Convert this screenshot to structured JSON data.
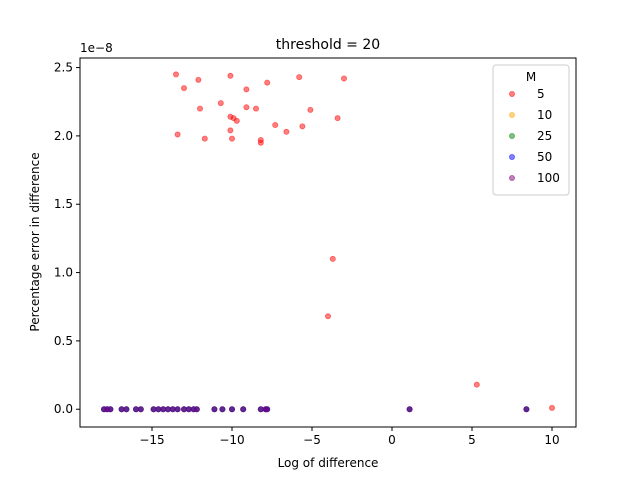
{
  "chart_data": {
    "type": "scatter",
    "title": "threshold = 20",
    "xlabel": "Log of difference",
    "ylabel": "Percentage error in difference",
    "y_multiplier_label": "1e−8",
    "xlim": [
      -19.5,
      11.5
    ],
    "ylim": [
      -0.13,
      2.57
    ],
    "x_ticks": [
      -15,
      -10,
      -5,
      0,
      5,
      10
    ],
    "x_tick_labels": [
      "−15",
      "−10",
      "−5",
      "0",
      "5",
      "10"
    ],
    "y_ticks": [
      0.0,
      0.5,
      1.0,
      1.5,
      2.0,
      2.5
    ],
    "y_tick_labels": [
      "0.0",
      "0.5",
      "1.0",
      "1.5",
      "2.0",
      "2.5"
    ],
    "grid": false,
    "legend": {
      "title": "M",
      "placement": "top-right"
    },
    "series": [
      {
        "name": "5",
        "color": "#ff0000",
        "x": [
          -13.5,
          -13.0,
          -12.1,
          -12.0,
          -13.4,
          -11.7,
          -10.7,
          -10.1,
          -10.1,
          -9.9,
          -9.7,
          -10.1,
          -10.0,
          -9.1,
          -9.1,
          -8.5,
          -8.2,
          -8.2,
          -7.8,
          -7.3,
          -6.6,
          -5.8,
          -5.6,
          -5.1,
          -3.4,
          -3.0,
          -3.7,
          -4.0,
          5.3,
          10.0
        ],
        "y": [
          2.45,
          2.35,
          2.41,
          2.2,
          2.01,
          1.98,
          2.24,
          2.44,
          2.14,
          2.13,
          2.11,
          2.04,
          1.98,
          2.34,
          2.21,
          2.2,
          1.97,
          1.95,
          2.39,
          2.08,
          2.03,
          2.43,
          2.07,
          2.19,
          2.13,
          2.42,
          1.1,
          0.68,
          0.18,
          0.01
        ]
      },
      {
        "name": "10",
        "color": "#ffa500",
        "x": [
          -18.0,
          -17.8,
          -17.6,
          -16.9,
          -16.6,
          -16.0,
          -15.7,
          -14.9,
          -14.6,
          -14.3,
          -14.0,
          -13.7,
          -13.4,
          -13.0,
          -12.7,
          -12.4,
          -12.2,
          -11.1,
          -10.6,
          -10.0,
          -9.3,
          -8.2,
          -7.9,
          -7.8,
          1.1,
          8.4
        ],
        "y": [
          0,
          0,
          0,
          0,
          0,
          0,
          0,
          0,
          0,
          0,
          0,
          0,
          0,
          0,
          0,
          0,
          0,
          0,
          0,
          0,
          0,
          0,
          0,
          0,
          0,
          0
        ]
      },
      {
        "name": "25",
        "color": "#008000",
        "x": [
          -18.0,
          -17.8,
          -17.6,
          -16.9,
          -16.6,
          -16.0,
          -15.7,
          -14.9,
          -14.6,
          -14.3,
          -14.0,
          -13.7,
          -13.4,
          -13.0,
          -12.7,
          -12.4,
          -12.2,
          -11.1,
          -10.6,
          -10.0,
          -9.3,
          -8.2,
          -7.9,
          -7.8,
          1.1,
          8.4
        ],
        "y": [
          0,
          0,
          0,
          0,
          0,
          0,
          0,
          0,
          0,
          0,
          0,
          0,
          0,
          0,
          0,
          0,
          0,
          0,
          0,
          0,
          0,
          0,
          0,
          0,
          0,
          0
        ]
      },
      {
        "name": "50",
        "color": "#0000ff",
        "x": [
          -18.0,
          -17.8,
          -17.6,
          -16.9,
          -16.6,
          -16.0,
          -15.7,
          -14.9,
          -14.6,
          -14.3,
          -14.0,
          -13.7,
          -13.4,
          -13.0,
          -12.7,
          -12.4,
          -12.2,
          -11.1,
          -10.6,
          -10.0,
          -9.3,
          -8.2,
          -7.9,
          -7.8,
          1.1,
          8.4
        ],
        "y": [
          0,
          0,
          0,
          0,
          0,
          0,
          0,
          0,
          0,
          0,
          0,
          0,
          0,
          0,
          0,
          0,
          0,
          0,
          0,
          0,
          0,
          0,
          0,
          0,
          0,
          0
        ]
      },
      {
        "name": "100",
        "color": "#800080",
        "x": [
          -18.0,
          -17.8,
          -17.6,
          -16.9,
          -16.6,
          -16.0,
          -15.7,
          -14.9,
          -14.6,
          -14.3,
          -14.0,
          -13.7,
          -13.4,
          -13.0,
          -12.7,
          -12.4,
          -12.2,
          -11.1,
          -10.6,
          -10.0,
          -9.3,
          -8.2,
          -7.9,
          -7.8,
          1.1,
          8.4
        ],
        "y": [
          0,
          0,
          0,
          0,
          0,
          0,
          0,
          0,
          0,
          0,
          0,
          0,
          0,
          0,
          0,
          0,
          0,
          0,
          0,
          0,
          0,
          0,
          0,
          0,
          0,
          0
        ]
      }
    ]
  }
}
